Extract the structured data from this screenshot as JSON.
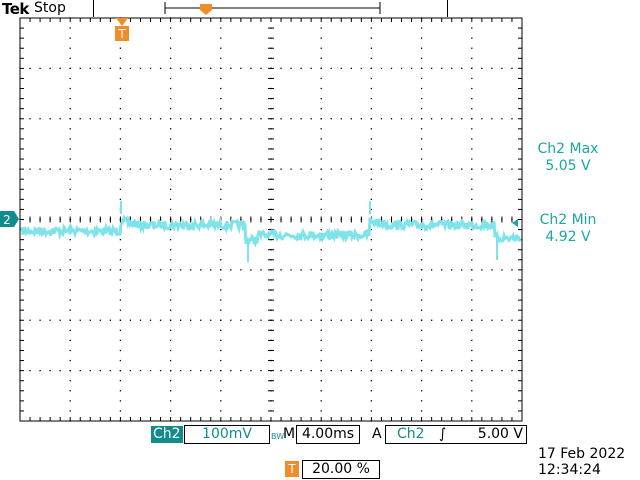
{
  "header": {
    "brand": "Tek",
    "status": "Stop"
  },
  "trigger_marker": "T",
  "channel_marker": "2",
  "measurements": [
    {
      "label": "Ch2 Max",
      "value": "5.05 V"
    },
    {
      "label": "Ch2 Min",
      "value": "4.92 V"
    }
  ],
  "footer": {
    "channel": "Ch2",
    "vertical_scale": "100mV",
    "bw_indicator": "BW",
    "timebase_prefix": "M",
    "timebase": "4.00ms",
    "acq_mode": "A",
    "trigger_source": "Ch2",
    "trigger_slope": "∫",
    "trigger_level": "5.00 V",
    "trigger_position_icon": "T",
    "trigger_position": "20.00 %",
    "date": "17 Feb  2022",
    "time": "12:34:24"
  },
  "colors": {
    "trace": "#7fe3ea",
    "channel": "#118c8c",
    "trigger": "#f28c28",
    "grid": "#000000"
  }
}
